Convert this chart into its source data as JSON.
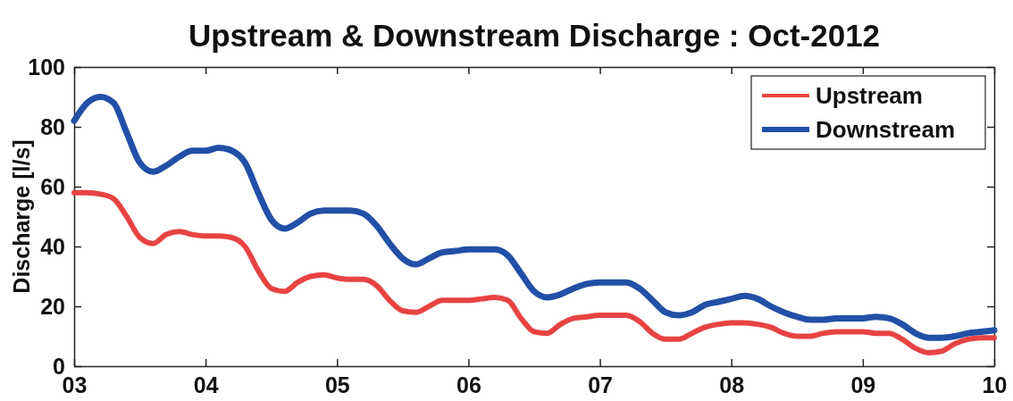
{
  "chart_data": {
    "type": "line",
    "title": "Upstream & Downstream Discharge : Oct-2012",
    "ylabel": "Discharge [l/s]",
    "x": [
      3.0,
      3.1,
      3.2,
      3.3,
      3.4,
      3.5,
      3.6,
      3.7,
      3.8,
      3.9,
      4.0,
      4.1,
      4.2,
      4.3,
      4.4,
      4.5,
      4.6,
      4.7,
      4.8,
      4.9,
      5.0,
      5.1,
      5.2,
      5.3,
      5.4,
      5.5,
      5.6,
      5.7,
      5.8,
      5.9,
      6.0,
      6.1,
      6.2,
      6.3,
      6.4,
      6.5,
      6.6,
      6.7,
      6.8,
      6.9,
      7.0,
      7.1,
      7.2,
      7.3,
      7.4,
      7.5,
      7.6,
      7.7,
      7.8,
      7.9,
      8.0,
      8.1,
      8.2,
      8.3,
      8.4,
      8.5,
      8.6,
      8.7,
      8.8,
      8.9,
      9.0,
      9.1,
      9.2,
      9.3,
      9.4,
      9.5,
      9.6,
      9.7,
      9.8,
      9.9,
      10.0
    ],
    "series": [
      {
        "name": "Upstream",
        "color": "#e84343",
        "values": [
          58,
          58,
          57.5,
          56,
          50,
          43,
          41,
          44,
          45,
          44,
          43.5,
          43.5,
          43,
          40,
          32,
          26,
          25,
          28,
          30,
          30.5,
          29.5,
          29,
          29,
          27,
          22,
          18.5,
          18,
          20,
          22,
          22,
          22,
          22.5,
          23,
          22,
          16,
          11.5,
          11,
          14,
          16,
          16.5,
          17,
          17,
          17,
          15,
          11,
          9,
          9,
          11,
          13,
          14,
          14.5,
          14.5,
          14,
          13,
          11,
          10,
          10,
          11,
          11.5,
          11.5,
          11.5,
          11,
          11,
          9,
          6,
          4.5,
          5,
          7.5,
          9,
          9.5,
          9.5
        ]
      },
      {
        "name": "Downstream",
        "color": "#2150a6",
        "values": [
          82,
          88,
          90,
          88,
          78,
          68,
          65,
          67,
          70,
          72,
          72,
          73,
          72,
          68,
          58,
          49,
          46,
          48,
          51,
          52,
          52,
          52,
          51,
          47,
          41,
          36,
          34,
          36,
          38,
          38.5,
          39,
          39,
          39,
          37,
          31,
          25,
          23,
          24,
          26,
          27.5,
          28,
          28,
          28,
          26,
          22,
          18,
          17,
          18,
          20.5,
          21.5,
          22.5,
          23.5,
          22.5,
          20,
          18,
          16.5,
          15.5,
          15.5,
          16,
          16,
          16,
          16.5,
          16,
          14,
          11,
          9.5,
          9.5,
          10,
          11,
          11.5,
          12
        ]
      }
    ],
    "xlim": [
      3,
      10
    ],
    "xticks": [
      {
        "value": 3,
        "label": "03"
      },
      {
        "value": 4,
        "label": "04"
      },
      {
        "value": 5,
        "label": "05"
      },
      {
        "value": 6,
        "label": "06"
      },
      {
        "value": 7,
        "label": "07"
      },
      {
        "value": 8,
        "label": "08"
      },
      {
        "value": 9,
        "label": "09"
      },
      {
        "value": 10,
        "label": "10"
      }
    ],
    "ylim": [
      0,
      100
    ],
    "yticks": [
      0,
      20,
      40,
      60,
      80,
      100
    ],
    "grid": false,
    "legend": "top right",
    "line_style": "solid"
  }
}
